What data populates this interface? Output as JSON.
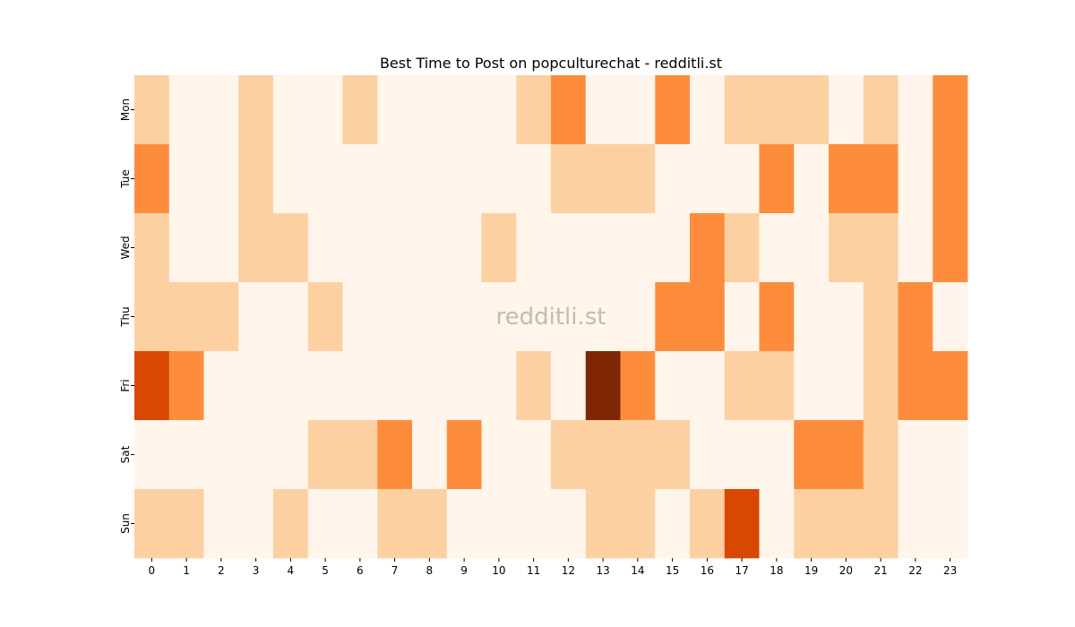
{
  "chart_data": {
    "type": "heatmap",
    "title": "Best Time to Post on popculturechat - redditli.st",
    "watermark": "redditli.st",
    "x": [
      "0",
      "1",
      "2",
      "3",
      "4",
      "5",
      "6",
      "7",
      "8",
      "9",
      "10",
      "11",
      "12",
      "13",
      "14",
      "15",
      "16",
      "17",
      "18",
      "19",
      "20",
      "21",
      "22",
      "23"
    ],
    "y": [
      "Mon",
      "Tue",
      "Wed",
      "Thu",
      "Fri",
      "Sat",
      "Sun"
    ],
    "values": [
      [
        1,
        0,
        0,
        1,
        0,
        0,
        1,
        0,
        0,
        0,
        0,
        1,
        2,
        0,
        0,
        2,
        0,
        1,
        1,
        1,
        0,
        1,
        0,
        2
      ],
      [
        2,
        0,
        0,
        1,
        0,
        0,
        0,
        0,
        0,
        0,
        0,
        0,
        1,
        1,
        1,
        0,
        0,
        0,
        2,
        0,
        2,
        2,
        0,
        2
      ],
      [
        1,
        0,
        0,
        1,
        1,
        0,
        0,
        0,
        0,
        0,
        1,
        0,
        0,
        0,
        0,
        0,
        2,
        1,
        0,
        0,
        1,
        1,
        0,
        2
      ],
      [
        1,
        1,
        1,
        0,
        0,
        1,
        0,
        0,
        0,
        0,
        0,
        0,
        0,
        0,
        0,
        2,
        2,
        0,
        2,
        0,
        0,
        1,
        2,
        0
      ],
      [
        3,
        2,
        0,
        0,
        0,
        0,
        0,
        0,
        0,
        0,
        0,
        1,
        0,
        4,
        2,
        0,
        0,
        1,
        1,
        0,
        0,
        1,
        2,
        2
      ],
      [
        0,
        0,
        0,
        0,
        0,
        1,
        1,
        2,
        0,
        2,
        0,
        0,
        1,
        1,
        1,
        1,
        0,
        0,
        0,
        2,
        2,
        1,
        0,
        0
      ],
      [
        1,
        1,
        0,
        0,
        1,
        0,
        0,
        1,
        1,
        0,
        0,
        0,
        0,
        1,
        1,
        0,
        1,
        3,
        0,
        1,
        1,
        1,
        0,
        0
      ]
    ],
    "levels": 5,
    "colors": [
      "#fff5eb",
      "#fdd0a2",
      "#fd8d3c",
      "#d94801",
      "#7f2704"
    ],
    "colorbar": false,
    "grid": false
  }
}
